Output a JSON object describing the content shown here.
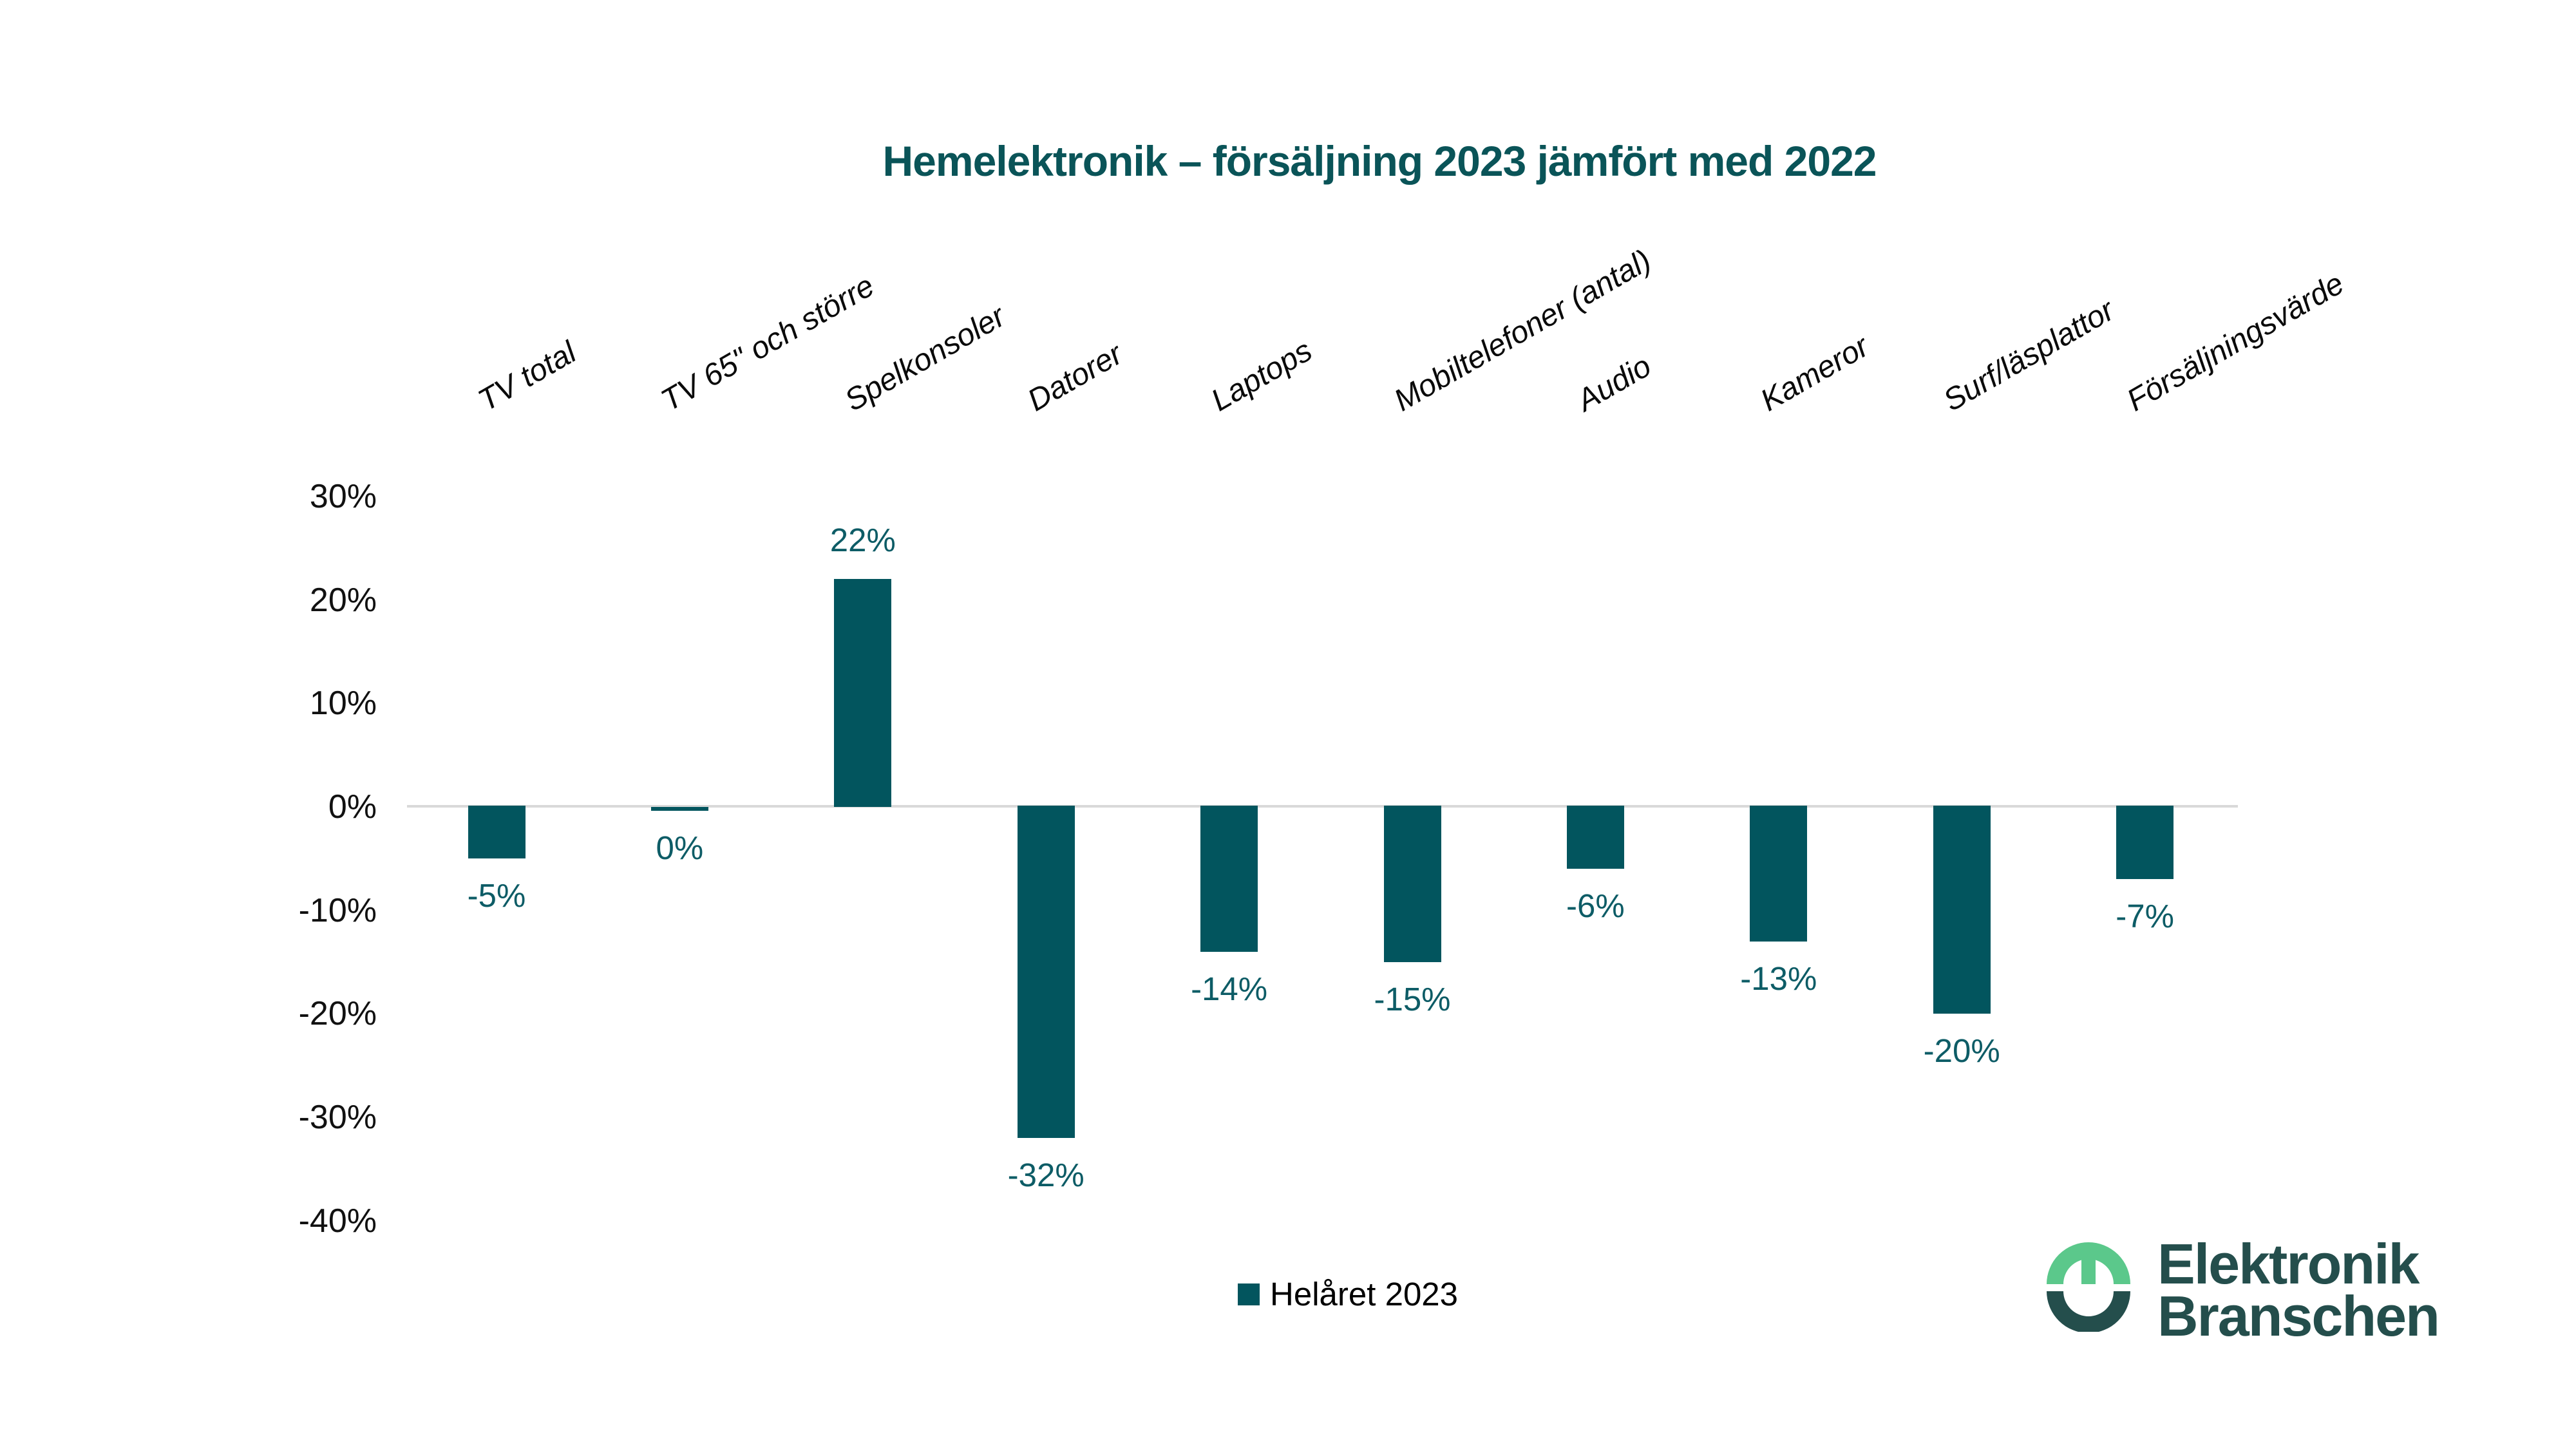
{
  "chart_data": {
    "type": "bar",
    "title": "Hemelektronik – försäljning 2023 jämfört med 2022",
    "categories": [
      "TV total",
      "TV 65\" och större",
      "Spelkonsoler",
      "Datorer",
      "Laptops",
      "Mobiltelefoner (antal)",
      "Audio",
      "Kameror",
      "Surf/läsplattor",
      "Försäljningsvärde"
    ],
    "series": [
      {
        "name": "Helåret 2023",
        "values": [
          -5,
          0,
          22,
          -32,
          -14,
          -15,
          -6,
          -13,
          -20,
          -7
        ],
        "labels": [
          "-5%",
          "0%",
          "22%",
          "-32%",
          "-14%",
          "-15%",
          "-6%",
          "-13%",
          "-20%",
          "-7%"
        ]
      }
    ],
    "ylim": [
      -40,
      30
    ],
    "yticks": [
      {
        "value": 30,
        "label": "30%"
      },
      {
        "value": 20,
        "label": "20%"
      },
      {
        "value": 10,
        "label": "10%"
      },
      {
        "value": 0,
        "label": "0%"
      },
      {
        "value": -10,
        "label": "-10%"
      },
      {
        "value": -20,
        "label": "-20%"
      },
      {
        "value": -30,
        "label": "-30%"
      },
      {
        "value": -40,
        "label": "-40%"
      }
    ],
    "grid": "zero-line-only",
    "legend_position": "bottom-center",
    "colors": {
      "bar": "#02555e",
      "value_label": "#0d5c66",
      "title": "#0a5458",
      "zero_line": "#d9d9d9",
      "axis_text": "#111111"
    }
  },
  "legend": {
    "label": "Helåret 2023",
    "swatch_color": "#02555e"
  },
  "logo": {
    "line1": "Elektronik",
    "line2": "Branschen",
    "green": "#5bc88b",
    "dark": "#244e4c"
  }
}
